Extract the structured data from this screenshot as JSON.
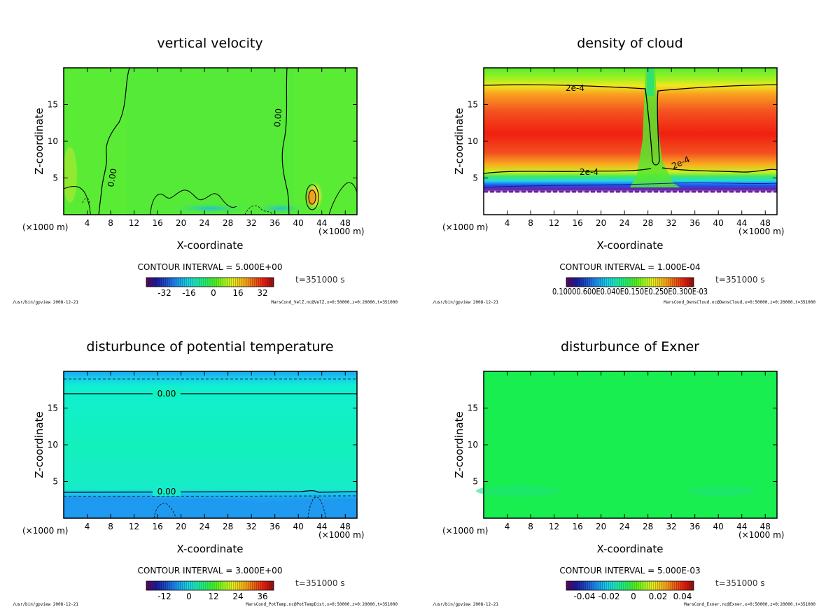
{
  "chart_data": [
    {
      "type": "heatmap",
      "title": "vertical velocity",
      "xlabel": "X-coordinate",
      "ylabel": "Z-coordinate",
      "x_unit": "(×1000 m)",
      "xlim": [
        0,
        50
      ],
      "ylim": [
        0,
        20
      ],
      "xticks": [
        4,
        8,
        12,
        16,
        20,
        24,
        28,
        32,
        36,
        40,
        44,
        48
      ],
      "yticks": [
        5,
        10,
        15
      ],
      "contour_interval": "CONTOUR INTERVAL = 5.000E+00",
      "time": "t=351000 s",
      "colorbar_ticks": [
        "-32",
        "-16",
        "0",
        "16",
        "32"
      ],
      "contour_labels": [
        "0.00",
        "0.00"
      ],
      "footer_left": "/usr/bin/gpview  2008-12-21",
      "footer_right": "MarsCond_VelZ.nc@VelZ,x=0:50000,z=0:20000,t=351000"
    },
    {
      "type": "heatmap",
      "title": "density of cloud",
      "xlabel": "X-coordinate",
      "ylabel": "Z-coordinate",
      "x_unit": "(×1000 m)",
      "xlim": [
        0,
        50
      ],
      "ylim": [
        0,
        20
      ],
      "xticks": [
        4,
        8,
        12,
        16,
        20,
        24,
        28,
        32,
        36,
        40,
        44,
        48
      ],
      "yticks": [
        5,
        10,
        15
      ],
      "contour_interval": "CONTOUR INTERVAL = 1.000E-04",
      "time": "t=351000 s",
      "colorbar_ticks": [
        "0.10000.600E0.040E0.150E0.250E0.300E-03"
      ],
      "contour_labels": [
        "2e-4",
        "2e-4",
        "2e-4"
      ],
      "footer_left": "/usr/bin/gpview  2008-12-21",
      "footer_right": "MarsCond_DensCloud.nc@DensCloud,x=0:50000,z=0:20000,t=351000"
    },
    {
      "type": "heatmap",
      "title": "disturbunce of potential temperature",
      "xlabel": "X-coordinate",
      "ylabel": "Z-coordinate",
      "x_unit": "(×1000 m)",
      "xlim": [
        0,
        50
      ],
      "ylim": [
        0,
        20
      ],
      "xticks": [
        4,
        8,
        12,
        16,
        20,
        24,
        28,
        32,
        36,
        40,
        44,
        48
      ],
      "yticks": [
        5,
        10,
        15
      ],
      "contour_interval": "CONTOUR INTERVAL = 3.000E+00",
      "time": "t=351000 s",
      "colorbar_ticks": [
        "-12",
        "0",
        "12",
        "24",
        "36"
      ],
      "contour_labels": [
        "0.00",
        "0.00"
      ],
      "footer_left": "/usr/bin/gpview  2008-12-21",
      "footer_right": "MarsCond_PotTemp.nc@PotTempDist,x=0:50000,z=0:20000,t=351000"
    },
    {
      "type": "heatmap",
      "title": "disturbunce of Exner",
      "xlabel": "X-coordinate",
      "ylabel": "Z-coordinate",
      "x_unit": "(×1000 m)",
      "xlim": [
        0,
        50
      ],
      "ylim": [
        0,
        20
      ],
      "xticks": [
        4,
        8,
        12,
        16,
        20,
        24,
        28,
        32,
        36,
        40,
        44,
        48
      ],
      "yticks": [
        5,
        10,
        15
      ],
      "contour_interval": "CONTOUR INTERVAL = 5.000E-03",
      "time": "t=351000 s",
      "colorbar_ticks": [
        "-0.04",
        "-0.02",
        "0",
        "0.02",
        "0.04"
      ],
      "contour_labels": [],
      "footer_left": "/usr/bin/gpview  2008-12-21",
      "footer_right": "MarsCond_Exner.nc@Exner,x=0:50000,z=0:20000,t=351000"
    }
  ]
}
